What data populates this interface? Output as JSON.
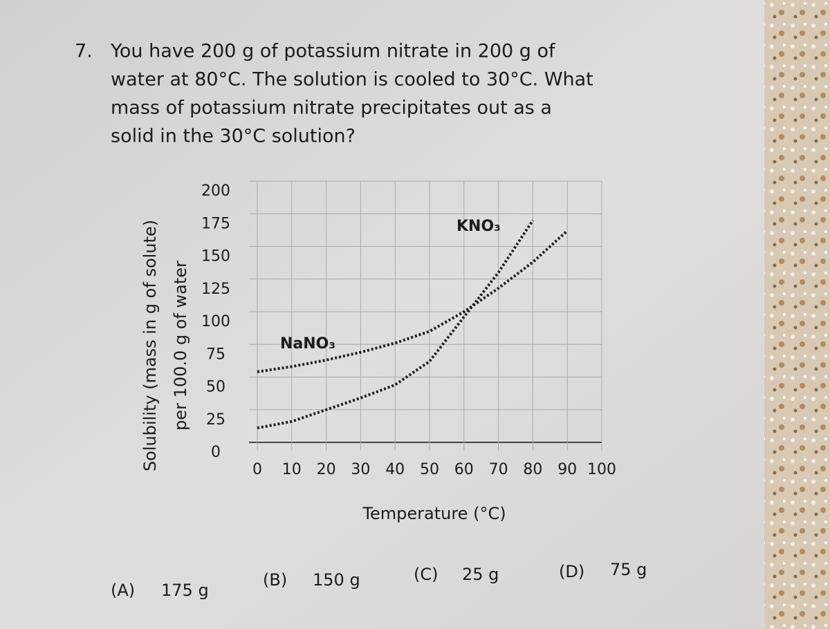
{
  "question": {
    "number": "7.",
    "lines": [
      "You have 200 g of potassium nitrate in 200 g of",
      "water at 80°C. The solution is cooled to 30°C. What",
      "mass of potassium nitrate precipitates out as a",
      "solid in the 30°C solution?"
    ]
  },
  "chart_data": {
    "type": "line",
    "ylabel": [
      "Solubility (mass in g of solute)",
      "per 100.0 g of water"
    ],
    "xlabel": "Temperature (°C)",
    "x": [
      0,
      10,
      20,
      30,
      40,
      50,
      60,
      70,
      80,
      90,
      100
    ],
    "series": [
      {
        "name": "KNO₃",
        "color": "#1e1e1e",
        "values": [
          11,
          16,
          25,
          34,
          44,
          62,
          96,
          130,
          170,
          null,
          null
        ]
      },
      {
        "name": "NaNO₃",
        "color": "#1e1e1e",
        "values": [
          54,
          58,
          63,
          69,
          76,
          85,
          100,
          118,
          138,
          162,
          null
        ]
      }
    ],
    "xlim": [
      0,
      100
    ],
    "xticks": [
      0,
      10,
      20,
      30,
      40,
      50,
      60,
      70,
      80,
      90,
      100
    ],
    "ylim": [
      0,
      200
    ],
    "yticks": [
      0,
      25,
      50,
      75,
      100,
      125,
      150,
      175,
      200
    ],
    "grid": true
  },
  "options": [
    {
      "letter": "(A)",
      "text": "175 g"
    },
    {
      "letter": "(B)",
      "text": "150 g"
    },
    {
      "letter": "(C)",
      "text": "25 g"
    },
    {
      "letter": "(D)",
      "text": "75 g"
    }
  ]
}
